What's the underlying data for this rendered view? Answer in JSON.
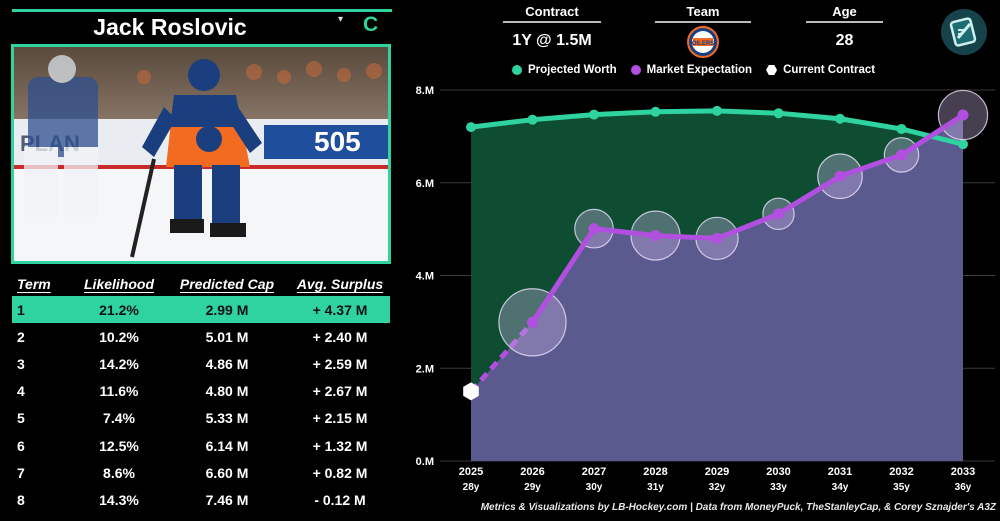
{
  "player": {
    "name": "Jack Roslovic",
    "position": "C",
    "arrow": "▾"
  },
  "header": {
    "contract": {
      "label": "Contract",
      "value": "1Y @ 1.5M"
    },
    "team": {
      "label": "Team",
      "logo": "edmonton-oilers-logo"
    },
    "age": {
      "label": "Age",
      "value": "28"
    }
  },
  "colors": {
    "accent": "#2ed3a0",
    "market": "#b24fe0",
    "worth_fill": "#0f4d33",
    "market_fill": "#5b5a8e"
  },
  "table": {
    "headers": [
      "Term",
      "Likelihood",
      "Predicted Cap",
      "Avg. Surplus"
    ],
    "selected_index": 0,
    "rows": [
      [
        "1",
        "21.2%",
        "2.99 M",
        "+ 4.37 M"
      ],
      [
        "2",
        "10.2%",
        "5.01 M",
        "+ 2.40 M"
      ],
      [
        "3",
        "14.2%",
        "4.86 M",
        "+ 2.59 M"
      ],
      [
        "4",
        "11.6%",
        "4.80 M",
        "+ 2.67 M"
      ],
      [
        "5",
        "7.4%",
        "5.33 M",
        "+ 2.15 M"
      ],
      [
        "6",
        "12.5%",
        "6.14 M",
        "+ 1.32 M"
      ],
      [
        "7",
        "8.6%",
        "6.60 M",
        "+ 0.82 M"
      ],
      [
        "8",
        "14.3%",
        "7.46 M",
        "- 0.12 M"
      ]
    ]
  },
  "legend": [
    "Projected Worth",
    "Market Expectation",
    "Current Contract"
  ],
  "chart_data": {
    "type": "line",
    "x": [
      2025,
      2026,
      2027,
      2028,
      2029,
      2030,
      2031,
      2032,
      2033
    ],
    "x_tick_labels": [
      "2025",
      "2026",
      "2027",
      "2028",
      "2029",
      "2030",
      "2031",
      "2032",
      "2033"
    ],
    "age_labels": [
      "28y",
      "29y",
      "30y",
      "31y",
      "32y",
      "33y",
      "34y",
      "35y",
      "36y"
    ],
    "ylim": [
      0,
      8
    ],
    "y_ticks": [
      0,
      2,
      4,
      6,
      8
    ],
    "y_tick_labels": [
      "0.M",
      "2.M",
      "4.M",
      "6.M",
      "8.M"
    ],
    "series": [
      {
        "name": "Projected Worth",
        "x": [
          2025,
          2026,
          2027,
          2028,
          2029,
          2030,
          2031,
          2032,
          2033
        ],
        "values": [
          7.2,
          7.36,
          7.47,
          7.53,
          7.55,
          7.5,
          7.38,
          7.16,
          6.83
        ]
      },
      {
        "name": "Market Expectation",
        "x": [
          2026,
          2027,
          2028,
          2029,
          2030,
          2031,
          2032,
          2033
        ],
        "values": [
          2.99,
          5.01,
          4.86,
          4.8,
          5.33,
          6.14,
          6.6,
          7.46
        ],
        "likelihood": [
          21.2,
          10.2,
          14.2,
          11.6,
          7.4,
          12.5,
          8.6,
          14.3
        ]
      },
      {
        "name": "Current Contract",
        "x": [
          2025
        ],
        "values": [
          1.5
        ]
      }
    ],
    "grid": true,
    "legend_position": "top"
  },
  "footer": "Metrics & Visualizations by LB-Hockey.com  |  Data from MoneyPuck, TheStanleyCap, & Corey Sznajder's A3Z"
}
